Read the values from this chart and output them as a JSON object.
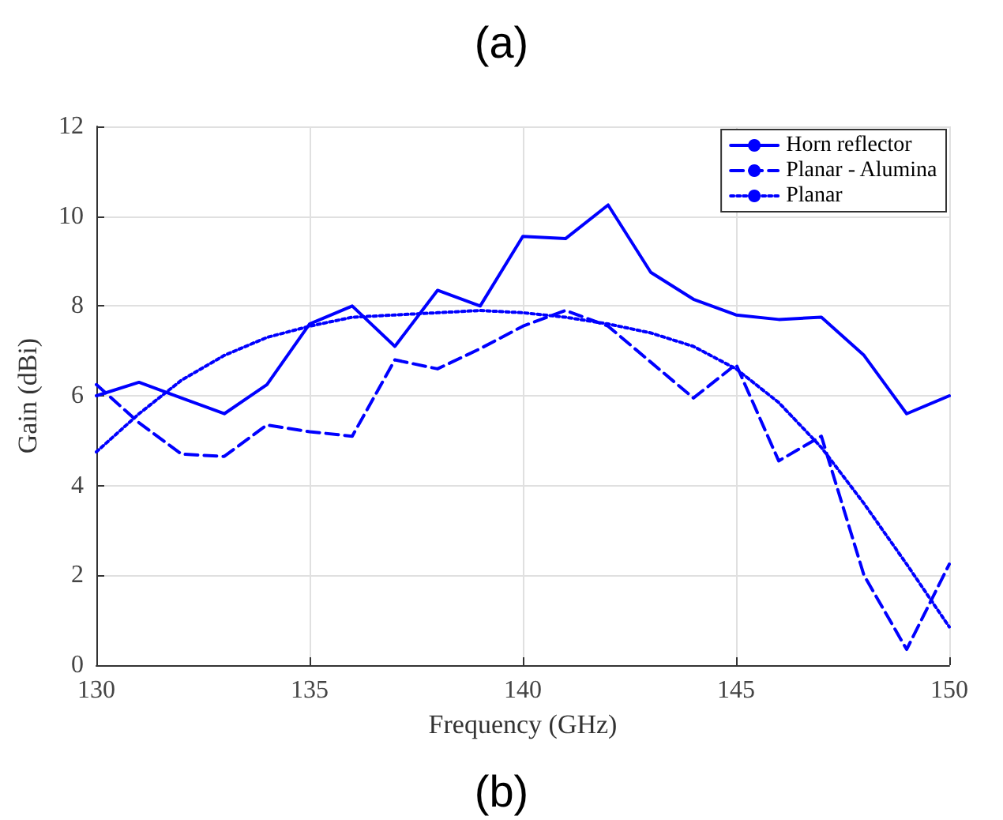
{
  "chart_data": {
    "type": "line",
    "title": "(a)",
    "annotations": [
      "(b)"
    ],
    "xlabel": "Frequency (GHz)",
    "ylabel": "Gain (dBi)",
    "x": [
      130,
      131,
      132,
      133,
      134,
      135,
      136,
      137,
      138,
      139,
      140,
      141,
      142,
      143,
      144,
      145,
      146,
      147,
      148,
      149,
      150
    ],
    "series": [
      {
        "name": "Horn reflector",
        "color": "#0000ff",
        "line_style": "solid",
        "values": [
          6.0,
          6.3,
          5.95,
          5.6,
          6.25,
          7.6,
          8.0,
          7.1,
          8.35,
          8.0,
          9.55,
          9.5,
          10.25,
          8.75,
          8.15,
          7.8,
          7.7,
          7.75,
          6.9,
          5.6,
          6.0
        ]
      },
      {
        "name": "Planar - Alumina",
        "color": "#0000ff",
        "line_style": "dashed",
        "values": [
          6.25,
          5.4,
          4.7,
          4.65,
          5.35,
          5.2,
          5.1,
          6.8,
          6.6,
          7.05,
          7.55,
          7.9,
          7.55,
          6.75,
          5.95,
          6.7,
          4.55,
          5.1,
          2.0,
          0.35,
          2.25
        ]
      },
      {
        "name": "Planar",
        "color": "#0000ff",
        "line_style": "dotted",
        "values": [
          4.75,
          5.6,
          6.35,
          6.9,
          7.3,
          7.55,
          7.75,
          7.8,
          7.85,
          7.9,
          7.85,
          7.75,
          7.6,
          7.4,
          7.1,
          6.6,
          5.85,
          4.85,
          3.6,
          2.25,
          0.85
        ]
      }
    ],
    "xlim": [
      130,
      150
    ],
    "xticks": [
      130,
      135,
      140,
      145,
      150
    ],
    "ylim": [
      0,
      12
    ],
    "yticks": [
      0,
      2,
      4,
      6,
      8,
      10,
      12
    ],
    "grid": true,
    "legend": "top right",
    "marker": "none"
  }
}
